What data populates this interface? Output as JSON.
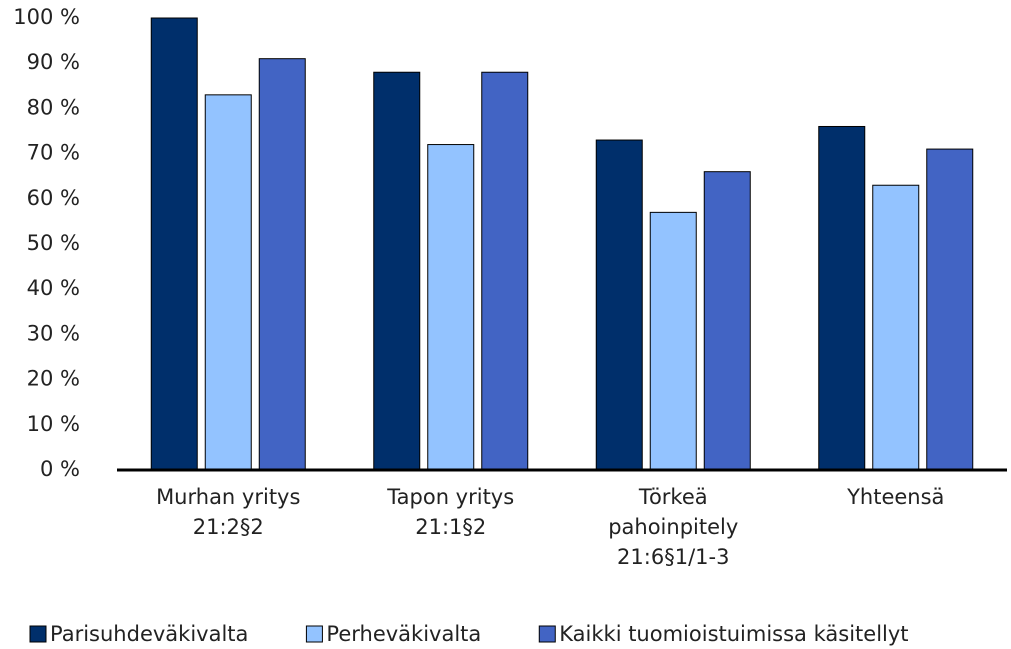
{
  "chart_data": {
    "type": "bar",
    "categories": [
      [
        "Murhan yritys",
        "21:2§2"
      ],
      [
        "Tapon yritys",
        "21:1§2"
      ],
      [
        "Törkeä",
        "pahoinpitely",
        "21:6§1/1-3"
      ],
      [
        "Yhteensä"
      ]
    ],
    "series": [
      {
        "name": "Parisuhdeväkivalta",
        "color": "#002f6b",
        "values": [
          100,
          88,
          73,
          76
        ]
      },
      {
        "name": "Perheväkivalta",
        "color": "#93c3ff",
        "values": [
          83,
          72,
          57,
          63
        ]
      },
      {
        "name": "Kaikki tuomioistuimissa käsitellyt",
        "color": "#4264c4",
        "values": [
          91,
          88,
          66,
          71
        ]
      }
    ],
    "ylim": [
      0,
      100
    ],
    "yticks": [
      {
        "value": 0,
        "label": "0 %"
      },
      {
        "value": 10,
        "label": "10 %"
      },
      {
        "value": 20,
        "label": "20 %"
      },
      {
        "value": 30,
        "label": "30 %"
      },
      {
        "value": 40,
        "label": "40 %"
      },
      {
        "value": 50,
        "label": "50 %"
      },
      {
        "value": 60,
        "label": "60 %"
      },
      {
        "value": 70,
        "label": "70 %"
      },
      {
        "value": 80,
        "label": "80 %"
      },
      {
        "value": 90,
        "label": "90 %"
      },
      {
        "value": 100,
        "label": "100 %"
      }
    ],
    "grid": false,
    "legend": "bottom"
  }
}
